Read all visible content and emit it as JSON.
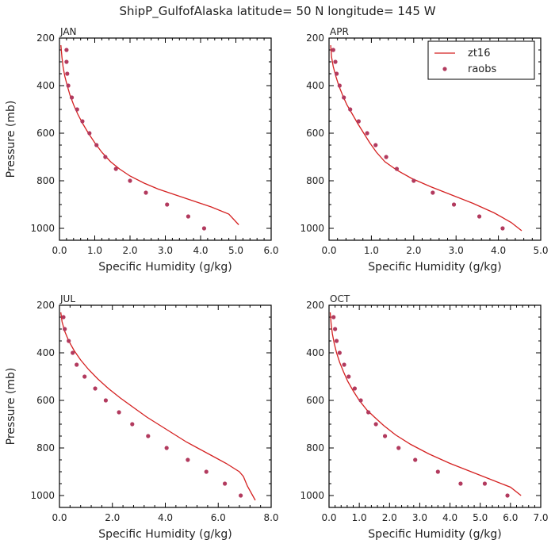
{
  "figure": {
    "title": "ShipP_GulfofAlaska   latitude= 50 N longitude= 145 W"
  },
  "legend": {
    "line_label": "zt16",
    "points_label": "raobs",
    "placement": "top-right of APR panel"
  },
  "colors": {
    "model_line": "#d42020",
    "obs_points": "#b23a5e",
    "axis": "#000000",
    "text": "#222222"
  },
  "chart_data": [
    {
      "type": "line",
      "panel": "JAN",
      "title": "JAN",
      "xlabel": "Specific Humidity (g/kg)",
      "ylabel": "Pressure (mb)",
      "xlim": [
        0,
        6
      ],
      "ylim": [
        1050,
        200
      ],
      "xticks": [
        "0.0",
        "1.0",
        "2.0",
        "3.0",
        "4.0",
        "5.0",
        "6.0"
      ],
      "xtick_values": [
        0,
        1,
        2,
        3,
        4,
        5,
        6
      ],
      "yticks": [
        "200",
        "400",
        "600",
        "800",
        "1000"
      ],
      "ytick_values": [
        200,
        400,
        600,
        800,
        1000
      ],
      "series": [
        {
          "name": "zt16",
          "kind": "line",
          "x": [
            0.04,
            0.07,
            0.1,
            0.15,
            0.22,
            0.3,
            0.4,
            0.52,
            0.66,
            0.82,
            1.0,
            1.2,
            1.45,
            1.7,
            2.0,
            2.4,
            2.8,
            3.3,
            3.8,
            4.3,
            4.8,
            5.08
          ],
          "y": [
            230,
            280,
            320,
            360,
            400,
            440,
            480,
            520,
            560,
            600,
            640,
            680,
            720,
            750,
            780,
            810,
            835,
            860,
            885,
            910,
            940,
            985
          ]
        },
        {
          "name": "raobs",
          "kind": "points",
          "x": [
            0.2,
            0.2,
            0.22,
            0.25,
            0.35,
            0.5,
            0.65,
            0.85,
            1.05,
            1.3,
            1.6,
            2.0,
            2.45,
            3.05,
            3.65,
            4.1
          ],
          "y": [
            250,
            300,
            350,
            400,
            450,
            500,
            550,
            600,
            650,
            700,
            750,
            800,
            850,
            900,
            950,
            1000
          ]
        }
      ]
    },
    {
      "type": "line",
      "panel": "APR",
      "title": "APR",
      "xlabel": "Specific Humidity (g/kg)",
      "ylabel": "",
      "xlim": [
        0,
        5
      ],
      "ylim": [
        1050,
        200
      ],
      "xticks": [
        "0.0",
        "1.0",
        "2.0",
        "3.0",
        "4.0",
        "5.0"
      ],
      "xtick_values": [
        0,
        1,
        2,
        3,
        4,
        5
      ],
      "yticks": [
        "200",
        "400",
        "600",
        "800",
        "1000"
      ],
      "ytick_values": [
        200,
        400,
        600,
        800,
        1000
      ],
      "series": [
        {
          "name": "zt16",
          "kind": "line",
          "x": [
            0.04,
            0.06,
            0.1,
            0.16,
            0.23,
            0.32,
            0.42,
            0.55,
            0.68,
            0.82,
            0.96,
            1.12,
            1.32,
            1.6,
            1.95,
            2.4,
            2.9,
            3.4,
            3.9,
            4.3,
            4.55
          ],
          "y": [
            230,
            280,
            320,
            360,
            400,
            440,
            480,
            520,
            560,
            600,
            640,
            680,
            720,
            755,
            790,
            825,
            860,
            895,
            935,
            975,
            1010
          ]
        },
        {
          "name": "raobs",
          "kind": "points",
          "x": [
            0.1,
            0.15,
            0.18,
            0.25,
            0.35,
            0.5,
            0.7,
            0.9,
            1.1,
            1.35,
            1.6,
            2.0,
            2.45,
            2.95,
            3.55,
            4.1
          ],
          "y": [
            250,
            300,
            350,
            400,
            450,
            500,
            550,
            600,
            650,
            700,
            750,
            800,
            850,
            900,
            950,
            1000
          ]
        }
      ]
    },
    {
      "type": "line",
      "panel": "JUL",
      "title": "JUL",
      "xlabel": "Specific Humidity (g/kg)",
      "ylabel": "Pressure (mb)",
      "xlim": [
        0,
        8
      ],
      "ylim": [
        1050,
        200
      ],
      "xticks": [
        "0.0",
        "2.0",
        "4.0",
        "6.0",
        "8.0"
      ],
      "xtick_values": [
        0,
        2,
        4,
        6,
        8
      ],
      "yticks": [
        "200",
        "400",
        "600",
        "800",
        "1000"
      ],
      "ytick_values": [
        200,
        400,
        600,
        800,
        1000
      ],
      "series": [
        {
          "name": "zt16",
          "kind": "line",
          "x": [
            0.05,
            0.1,
            0.2,
            0.35,
            0.55,
            0.8,
            1.1,
            1.45,
            1.85,
            2.3,
            2.8,
            3.3,
            3.8,
            4.3,
            4.8,
            5.3,
            5.8,
            6.3,
            6.8,
            6.95,
            7.1,
            7.4
          ],
          "y": [
            230,
            270,
            310,
            350,
            390,
            430,
            470,
            510,
            550,
            590,
            630,
            670,
            705,
            740,
            775,
            805,
            835,
            865,
            900,
            920,
            960,
            1020
          ]
        },
        {
          "name": "raobs",
          "kind": "points",
          "x": [
            0.15,
            0.2,
            0.35,
            0.5,
            0.65,
            0.95,
            1.35,
            1.75,
            2.25,
            2.75,
            3.35,
            4.05,
            4.85,
            5.55,
            6.25,
            6.85
          ],
          "y": [
            250,
            300,
            350,
            400,
            450,
            500,
            550,
            600,
            650,
            700,
            750,
            800,
            850,
            900,
            950,
            1000
          ]
        }
      ]
    },
    {
      "type": "line",
      "panel": "OCT",
      "title": "OCT",
      "xlabel": "Specific Humidity (g/kg)",
      "ylabel": "",
      "xlim": [
        0,
        7
      ],
      "ylim": [
        1050,
        200
      ],
      "xticks": [
        "0.0",
        "1.0",
        "2.0",
        "3.0",
        "4.0",
        "5.0",
        "6.0",
        "7.0"
      ],
      "xtick_values": [
        0,
        1,
        2,
        3,
        4,
        5,
        6,
        7
      ],
      "yticks": [
        "200",
        "400",
        "600",
        "800",
        "1000"
      ],
      "ytick_values": [
        200,
        400,
        600,
        800,
        1000
      ],
      "series": [
        {
          "name": "zt16",
          "kind": "line",
          "x": [
            0.04,
            0.07,
            0.11,
            0.17,
            0.25,
            0.35,
            0.48,
            0.62,
            0.8,
            1.0,
            1.25,
            1.5,
            1.8,
            2.2,
            2.7,
            3.3,
            4.0,
            4.7,
            5.4,
            6.0,
            6.35
          ],
          "y": [
            230,
            280,
            320,
            360,
            400,
            440,
            480,
            520,
            560,
            600,
            640,
            670,
            705,
            745,
            785,
            825,
            865,
            900,
            935,
            965,
            1000
          ]
        },
        {
          "name": "raobs",
          "kind": "points",
          "x": [
            0.15,
            0.2,
            0.25,
            0.35,
            0.5,
            0.65,
            0.85,
            1.05,
            1.3,
            1.55,
            1.85,
            2.3,
            2.85,
            3.6,
            4.35,
            5.15,
            5.9
          ],
          "y": [
            250,
            300,
            350,
            400,
            450,
            500,
            550,
            600,
            650,
            700,
            750,
            800,
            850,
            900,
            950,
            950,
            1000
          ]
        }
      ]
    }
  ]
}
